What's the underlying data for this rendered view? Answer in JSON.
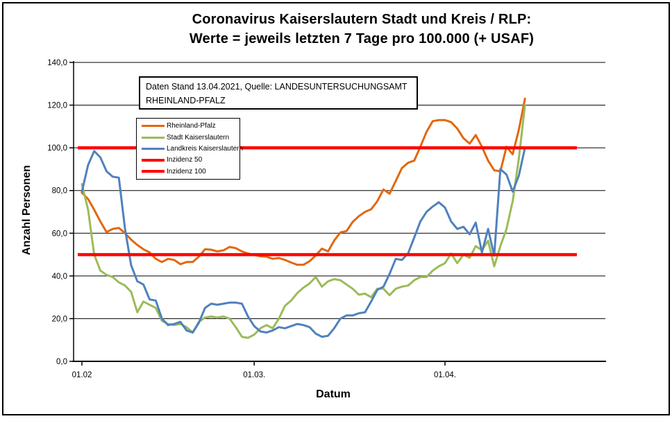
{
  "window": {
    "background": "#FFFFFF",
    "border_color": "#000000"
  },
  "title": {
    "line1": "Coronavirus Kaiserslautern Stadt und Kreis / RLP:",
    "line2": "Werte = jeweils letzten 7 Tage pro 100.000 (+ USAF)"
  },
  "info_box": {
    "line1": "Daten Stand 13.04.2021, Quelle: LANDESUNTERSUCHUNGSAMT",
    "line2": "RHEINLAND-PFALZ"
  },
  "axes": {
    "y_title": "Anzahl Personen",
    "x_title": "Datum"
  },
  "legend": {
    "items": [
      {
        "label": "Rheinland-Pfalz",
        "color": "#E3670D",
        "thickness": 3
      },
      {
        "label": "Stadt Kaiserslautern",
        "color": "#9BBB59",
        "thickness": 3
      },
      {
        "label": "Landkreis Kaiserslautern",
        "color": "#4F81BD",
        "thickness": 3
      },
      {
        "label": "Inzidenz 50",
        "color": "#FF0000",
        "thickness": 4
      },
      {
        "label": "Inzidenz 100",
        "color": "#FF0000",
        "thickness": 4
      }
    ]
  },
  "chart_data": {
    "type": "line",
    "title": "Coronavirus Kaiserslautern Stadt und Kreis / RLP: Werte = jeweils letzten 7 Tage pro 100.000 (+ USAF)",
    "xlabel": "Datum",
    "ylabel": "Anzahl Personen",
    "ylim": [
      0,
      140
    ],
    "grid": "horizontal",
    "legend_position": "inside-top-left",
    "x_unit": "day (01.02.2021 – 14.04.2021)",
    "x_ticks": [
      {
        "day_index": 0,
        "label": "01.02"
      },
      {
        "day_index": 28,
        "label": "01.03."
      },
      {
        "day_index": 59,
        "label": "01.04."
      }
    ],
    "y_ticks": [
      {
        "value": 0,
        "label": "0,0"
      },
      {
        "value": 20,
        "label": "20,0"
      },
      {
        "value": 40,
        "label": "40,0"
      },
      {
        "value": 60,
        "label": "60,0"
      },
      {
        "value": 80,
        "label": "80,0"
      },
      {
        "value": 100,
        "label": "100,0"
      },
      {
        "value": 120,
        "label": "120,0"
      },
      {
        "value": 140,
        "label": "140,0"
      }
    ],
    "reference_lines": [
      {
        "name": "Inzidenz 50",
        "value": 50,
        "color": "#FF0000"
      },
      {
        "name": "Inzidenz 100",
        "value": 100,
        "color": "#FF0000"
      }
    ],
    "series": [
      {
        "name": "Rheinland-Pfalz",
        "color": "#E3670D",
        "values": [
          79,
          76,
          71,
          65.5,
          60.5,
          62,
          62.5,
          60,
          57,
          54.5,
          52.5,
          51,
          48,
          46.5,
          48,
          47.5,
          45.5,
          46.5,
          46.5,
          49,
          52.5,
          52.3,
          51.5,
          52,
          53.6,
          53,
          51.5,
          50.5,
          49.8,
          49.2,
          49,
          48,
          48.4,
          47.5,
          46.3,
          45.2,
          45.2,
          46.9,
          49.6,
          52.8,
          51.5,
          56.6,
          60.4,
          61,
          65.3,
          68,
          70,
          71.2,
          75,
          80.5,
          78.5,
          84.5,
          90.5,
          93,
          94,
          100.5,
          107.5,
          112.5,
          113,
          113,
          112,
          109,
          104.5,
          102,
          106,
          100.5,
          94,
          89.5,
          89,
          100.5,
          97,
          108.5,
          123
        ]
      },
      {
        "name": "Stadt Kaiserslautern",
        "color": "#9BBB59",
        "values": [
          83,
          71,
          50,
          42.5,
          40.5,
          39.5,
          37,
          35.5,
          32.5,
          23,
          28,
          26.5,
          25,
          19,
          17.5,
          17,
          17.5,
          16,
          13.5,
          18.5,
          20.5,
          21,
          20.5,
          21,
          20,
          16,
          11.5,
          11,
          12.5,
          15.5,
          17,
          15.5,
          20,
          26,
          28.5,
          32,
          34.5,
          36.5,
          39.5,
          35,
          37.5,
          38.5,
          38,
          36,
          34,
          31.2,
          31.7,
          30,
          34,
          34,
          31,
          34,
          35,
          35.5,
          38,
          39.5,
          39.5,
          42.5,
          44.5,
          46,
          50.5,
          46,
          50,
          48.5,
          54,
          52,
          56.5,
          44.5,
          54,
          62,
          75,
          95,
          120
        ]
      },
      {
        "name": "Landkreis Kaiserslautern",
        "color": "#4F81BD",
        "values": [
          79.5,
          92,
          98.5,
          95.5,
          89,
          86.5,
          86,
          62,
          45,
          37.5,
          36,
          29,
          28.5,
          20,
          17,
          17.5,
          18.5,
          14.5,
          13.5,
          18,
          25,
          27,
          26.5,
          27,
          27.5,
          27.5,
          27,
          21,
          16.5,
          14,
          13.5,
          14.5,
          16,
          15.5,
          16.5,
          17.5,
          17,
          16,
          13,
          11.5,
          12,
          15.5,
          20,
          21.5,
          21.5,
          22.5,
          23,
          28,
          33.5,
          35,
          41,
          48,
          47.5,
          50.5,
          58,
          65.5,
          70,
          72.5,
          74.5,
          72,
          65.5,
          62,
          63,
          59.5,
          65,
          51,
          62,
          49.5,
          90,
          87.5,
          79.5,
          87,
          100
        ]
      }
    ]
  }
}
